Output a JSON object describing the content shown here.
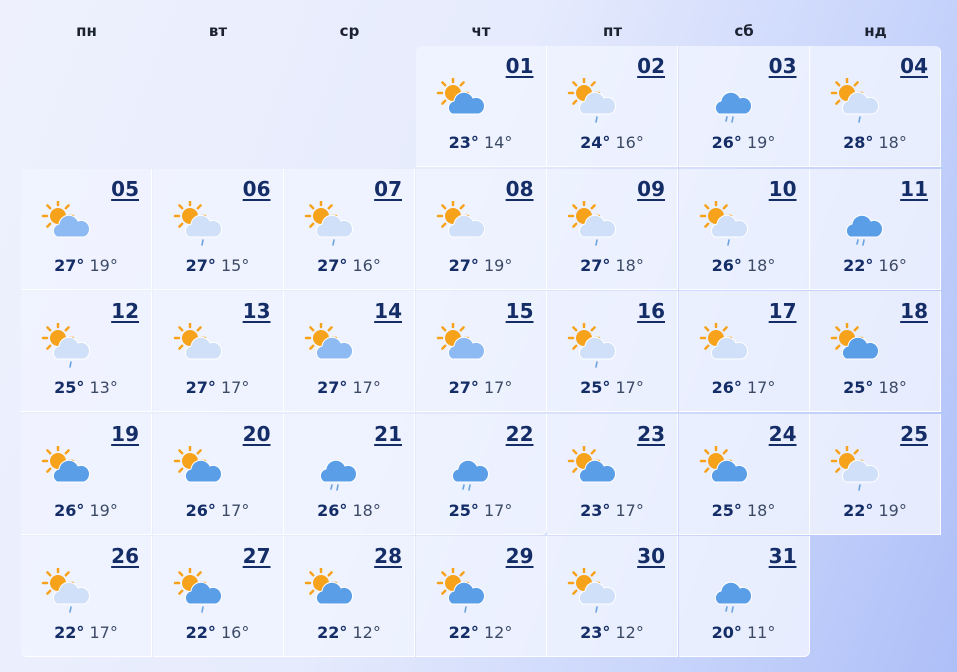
{
  "weekdays": [
    "пн",
    "вт",
    "ср",
    "чт",
    "пт",
    "сб",
    "нд"
  ],
  "first_weekday_index": 3,
  "colors": {
    "sun": "#f7a21b",
    "cloud_blue": "#5a9ee8",
    "cloud_medium": "#8dbaf2",
    "cloud_pale": "#cfe0f8",
    "rain": "#6aa3e0",
    "text": "#142d66"
  },
  "days": [
    {
      "day": "01",
      "hi": "23°",
      "lo": "14°",
      "icon": "sun-cloud",
      "cloud": "cloud_blue"
    },
    {
      "day": "02",
      "hi": "24°",
      "lo": "16°",
      "icon": "sun-cloud-rain",
      "cloud": "cloud_pale"
    },
    {
      "day": "03",
      "hi": "26°",
      "lo": "19°",
      "icon": "cloud-rain",
      "cloud": "cloud_blue"
    },
    {
      "day": "04",
      "hi": "28°",
      "lo": "18°",
      "icon": "sun-cloud-rain",
      "cloud": "cloud_pale"
    },
    {
      "day": "05",
      "hi": "27°",
      "lo": "19°",
      "icon": "sun-cloud",
      "cloud": "cloud_medium"
    },
    {
      "day": "06",
      "hi": "27°",
      "lo": "15°",
      "icon": "sun-cloud-rain",
      "cloud": "cloud_pale"
    },
    {
      "day": "07",
      "hi": "27°",
      "lo": "16°",
      "icon": "sun-cloud-rain",
      "cloud": "cloud_pale"
    },
    {
      "day": "08",
      "hi": "27°",
      "lo": "19°",
      "icon": "sun-cloud",
      "cloud": "cloud_pale"
    },
    {
      "day": "09",
      "hi": "27°",
      "lo": "18°",
      "icon": "sun-cloud-rain",
      "cloud": "cloud_pale"
    },
    {
      "day": "10",
      "hi": "26°",
      "lo": "18°",
      "icon": "sun-cloud-rain",
      "cloud": "cloud_pale"
    },
    {
      "day": "11",
      "hi": "22°",
      "lo": "16°",
      "icon": "cloud-rain",
      "cloud": "cloud_blue"
    },
    {
      "day": "12",
      "hi": "25°",
      "lo": "13°",
      "icon": "sun-cloud-rain",
      "cloud": "cloud_pale"
    },
    {
      "day": "13",
      "hi": "27°",
      "lo": "17°",
      "icon": "sun-cloud",
      "cloud": "cloud_pale"
    },
    {
      "day": "14",
      "hi": "27°",
      "lo": "17°",
      "icon": "sun-cloud",
      "cloud": "cloud_medium"
    },
    {
      "day": "15",
      "hi": "27°",
      "lo": "17°",
      "icon": "sun-cloud",
      "cloud": "cloud_medium"
    },
    {
      "day": "16",
      "hi": "25°",
      "lo": "17°",
      "icon": "sun-cloud-rain",
      "cloud": "cloud_pale"
    },
    {
      "day": "17",
      "hi": "26°",
      "lo": "17°",
      "icon": "sun-cloud",
      "cloud": "cloud_pale"
    },
    {
      "day": "18",
      "hi": "25°",
      "lo": "18°",
      "icon": "sun-cloud",
      "cloud": "cloud_blue"
    },
    {
      "day": "19",
      "hi": "26°",
      "lo": "19°",
      "icon": "sun-cloud",
      "cloud": "cloud_blue"
    },
    {
      "day": "20",
      "hi": "26°",
      "lo": "17°",
      "icon": "sun-cloud",
      "cloud": "cloud_blue"
    },
    {
      "day": "21",
      "hi": "26°",
      "lo": "18°",
      "icon": "cloud-rain",
      "cloud": "cloud_blue"
    },
    {
      "day": "22",
      "hi": "25°",
      "lo": "17°",
      "icon": "cloud-rain",
      "cloud": "cloud_blue"
    },
    {
      "day": "23",
      "hi": "23°",
      "lo": "17°",
      "icon": "sun-cloud",
      "cloud": "cloud_blue"
    },
    {
      "day": "24",
      "hi": "25°",
      "lo": "18°",
      "icon": "sun-cloud",
      "cloud": "cloud_blue"
    },
    {
      "day": "25",
      "hi": "22°",
      "lo": "19°",
      "icon": "sun-cloud-rain",
      "cloud": "cloud_pale"
    },
    {
      "day": "26",
      "hi": "22°",
      "lo": "17°",
      "icon": "sun-cloud-rain",
      "cloud": "cloud_pale"
    },
    {
      "day": "27",
      "hi": "22°",
      "lo": "16°",
      "icon": "sun-cloud-rain",
      "cloud": "cloud_blue"
    },
    {
      "day": "28",
      "hi": "22°",
      "lo": "12°",
      "icon": "sun-cloud",
      "cloud": "cloud_blue"
    },
    {
      "day": "29",
      "hi": "22°",
      "lo": "12°",
      "icon": "sun-cloud-rain",
      "cloud": "cloud_blue"
    },
    {
      "day": "30",
      "hi": "23°",
      "lo": "12°",
      "icon": "sun-cloud-rain",
      "cloud": "cloud_pale"
    },
    {
      "day": "31",
      "hi": "20°",
      "lo": "11°",
      "icon": "cloud-rain",
      "cloud": "cloud_blue"
    }
  ]
}
